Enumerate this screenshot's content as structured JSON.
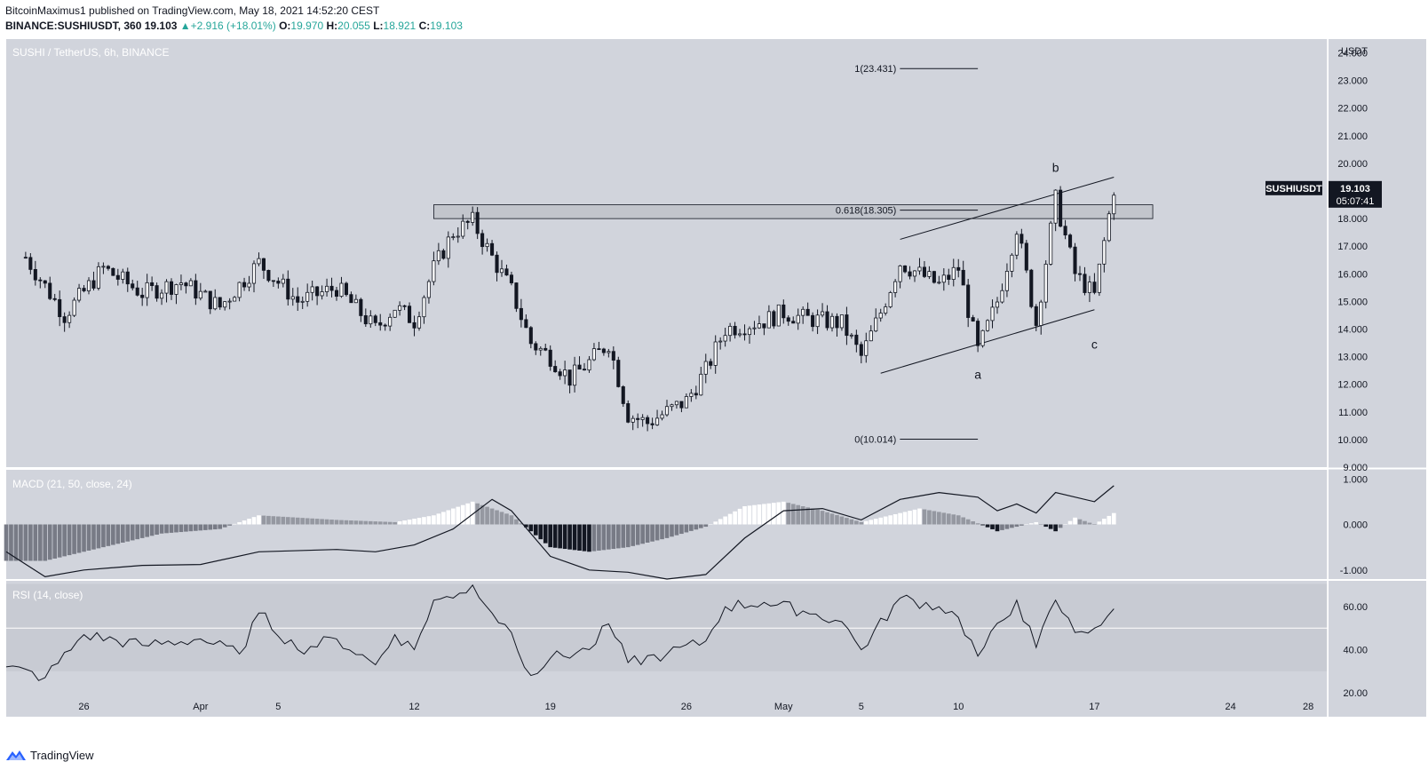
{
  "header": {
    "line1": "BitcoinMaximus1 published on TradingView.com, May 18, 2021 14:52:20 CEST",
    "symbol": "BINANCE:SUSHIUSDT, 360",
    "price": "19.103",
    "arrow": "▲",
    "change": "+2.916 (+18.01%)",
    "o_label": "O:",
    "o_value": "19.970",
    "h_label": "H:",
    "h_value": "20.055",
    "l_label": "L:",
    "l_value": "18.921",
    "c_label": "C:",
    "c_value": "19.103"
  },
  "footer": {
    "brand": "TradingView"
  },
  "colors": {
    "pane_bg": "#d1d4dc",
    "candle": "#131722",
    "accent": "#26a69a",
    "label_bg": "#131722"
  },
  "chart_data": [
    {
      "type": "candlestick",
      "title": "SUSHI / TetherUS, 6h, BINANCE",
      "unit": "USDT",
      "x_tick_labels": [
        "26",
        "Apr",
        "5",
        "12",
        "19",
        "26",
        "May",
        "5",
        "10",
        "17",
        "24",
        "28"
      ],
      "y_tick_labels": [
        "9.000",
        "10.000",
        "11.000",
        "12.000",
        "13.000",
        "14.000",
        "15.000",
        "16.000",
        "17.000",
        "18.000",
        "19.000",
        "20.000",
        "21.000",
        "22.000",
        "23.000",
        "24.000"
      ],
      "ylim": [
        9,
        24.5
      ],
      "last_price_label": {
        "symbol": "SUSHIUSDT",
        "price": "19.103",
        "countdown": "05:07:41"
      },
      "price_path": [
        [
          "Mar 23",
          16.6
        ],
        [
          "Mar 25",
          14.5
        ],
        [
          "Mar 27",
          16.2
        ],
        [
          "Mar 29",
          15.3
        ],
        [
          "Mar 31",
          15.7
        ],
        [
          "Apr 2",
          14.8
        ],
        [
          "Apr 4",
          16.4
        ],
        [
          "Apr 6",
          15.0
        ],
        [
          "Apr 8",
          15.5
        ],
        [
          "Apr 10",
          14.0
        ],
        [
          "Apr 11",
          14.8
        ],
        [
          "Apr 12",
          14.3
        ],
        [
          "Apr 13",
          16.2
        ],
        [
          "Apr 14",
          17.5
        ],
        [
          "Apr 15",
          17.9
        ],
        [
          "Apr 16",
          16.6
        ],
        [
          "Apr 17",
          15.4
        ],
        [
          "Apr 18",
          13.5
        ],
        [
          "Apr 19",
          13.0
        ],
        [
          "Apr 20",
          12.2
        ],
        [
          "Apr 21",
          12.8
        ],
        [
          "Apr 22",
          13.5
        ],
        [
          "Apr 23",
          10.9
        ],
        [
          "Apr 24",
          10.6
        ],
        [
          "Apr 25",
          11.0
        ],
        [
          "Apr 26",
          11.4
        ],
        [
          "Apr 27",
          12.5
        ],
        [
          "Apr 28",
          14.0
        ],
        [
          "Apr 30",
          14.3
        ],
        [
          "May 1",
          14.6
        ],
        [
          "May 2",
          14.4
        ],
        [
          "May 4",
          14.2
        ],
        [
          "May 5",
          13.0
        ],
        [
          "May 6",
          14.6
        ],
        [
          "May 7",
          16.4
        ],
        [
          "May 8",
          16.0
        ],
        [
          "May 9",
          15.6
        ],
        [
          "May 10",
          16.2
        ],
        [
          "May 11",
          13.2
        ],
        [
          "May 12",
          15.0
        ],
        [
          "May 13",
          17.7
        ],
        [
          "May 14",
          14.2
        ],
        [
          "May 15",
          18.7
        ],
        [
          "May 16",
          16.0
        ],
        [
          "May 17",
          15.2
        ],
        [
          "May 18",
          19.1
        ]
      ],
      "horizontal_zone": {
        "from": 18.0,
        "to": 18.5
      },
      "fib_levels": [
        {
          "label": "1(23.431)",
          "value": 23.431
        },
        {
          "label": "0.618(18.305)",
          "value": 18.305
        },
        {
          "label": "0(10.014)",
          "value": 10.014
        }
      ],
      "channel": {
        "upper": [
          [
            "May 7",
            17.25
          ],
          [
            "May 18",
            19.5
          ]
        ],
        "lower": [
          [
            "May 6",
            12.4
          ],
          [
            "May 17",
            14.7
          ]
        ]
      },
      "wave_labels": [
        {
          "text": "a",
          "date": "May 11",
          "value": 12.2
        },
        {
          "text": "b",
          "date": "May 15",
          "value": 19.7
        },
        {
          "text": "c",
          "date": "May 17",
          "value": 13.3
        }
      ]
    },
    {
      "type": "line",
      "title": "MACD (21, 50, close, 24)",
      "y_tick_labels": [
        "-1.000",
        "0.000",
        "1.000"
      ],
      "ylim": [
        -1.2,
        1.2
      ],
      "macd_line": [
        [
          "Mar 22",
          -0.6
        ],
        [
          "Mar 24",
          -1.15
        ],
        [
          "Mar 26",
          -1.0
        ],
        [
          "Mar 29",
          -0.9
        ],
        [
          "Apr 1",
          -0.88
        ],
        [
          "Apr 4",
          -0.6
        ],
        [
          "Apr 8",
          -0.55
        ],
        [
          "Apr 10",
          -0.6
        ],
        [
          "Apr 12",
          -0.45
        ],
        [
          "Apr 14",
          -0.1
        ],
        [
          "Apr 16",
          0.55
        ],
        [
          "Apr 17",
          0.3
        ],
        [
          "Apr 19",
          -0.7
        ],
        [
          "Apr 21",
          -1.0
        ],
        [
          "Apr 23",
          -1.05
        ],
        [
          "Apr 25",
          -1.2
        ],
        [
          "Apr 27",
          -1.1
        ],
        [
          "Apr 29",
          -0.3
        ],
        [
          "May 1",
          0.3
        ],
        [
          "May 3",
          0.35
        ],
        [
          "May 5",
          0.1
        ],
        [
          "May 7",
          0.55
        ],
        [
          "May 9",
          0.7
        ],
        [
          "May 11",
          0.6
        ],
        [
          "May 12",
          0.3
        ],
        [
          "May 13",
          0.45
        ],
        [
          "May 14",
          0.25
        ],
        [
          "May 15",
          0.7
        ],
        [
          "May 17",
          0.5
        ],
        [
          "May 18",
          0.85
        ]
      ],
      "histogram": [
        [
          "Mar 22",
          -0.8
        ],
        [
          "Mar 24",
          -0.8
        ],
        [
          "Mar 27",
          -0.5
        ],
        [
          "Mar 30",
          -0.2
        ],
        [
          "Apr 2",
          -0.1
        ],
        [
          "Apr 4",
          0.2
        ],
        [
          "Apr 8",
          0.1
        ],
        [
          "Apr 11",
          0.05
        ],
        [
          "Apr 13",
          0.2
        ],
        [
          "Apr 15",
          0.5
        ],
        [
          "Apr 17",
          0.2
        ],
        [
          "Apr 19",
          -0.5
        ],
        [
          "Apr 21",
          -0.6
        ],
        [
          "Apr 23",
          -0.5
        ],
        [
          "Apr 25",
          -0.3
        ],
        [
          "Apr 27",
          -0.05
        ],
        [
          "Apr 29",
          0.4
        ],
        [
          "May 1",
          0.5
        ],
        [
          "May 3",
          0.3
        ],
        [
          "May 5",
          0.05
        ],
        [
          "May 8",
          0.35
        ],
        [
          "May 10",
          0.2
        ],
        [
          "May 12",
          -0.15
        ],
        [
          "May 14",
          0.05
        ],
        [
          "May 15",
          -0.15
        ],
        [
          "May 16",
          0.15
        ],
        [
          "May 17",
          0.0
        ],
        [
          "May 18",
          0.25
        ]
      ]
    },
    {
      "type": "line",
      "title": "RSI (14, close)",
      "y_tick_labels": [
        "20.00",
        "40.00",
        "60.00"
      ],
      "ylim": [
        20,
        72
      ],
      "rsi_line": [
        [
          "Mar 22",
          32
        ],
        [
          "Mar 24",
          27
        ],
        [
          "Mar 26",
          47
        ],
        [
          "Mar 29",
          42
        ],
        [
          "Apr 1",
          45
        ],
        [
          "Apr 3",
          38
        ],
        [
          "Apr 4",
          57
        ],
        [
          "Apr 6",
          40
        ],
        [
          "Apr 8",
          45
        ],
        [
          "Apr 10",
          33
        ],
        [
          "Apr 11",
          47
        ],
        [
          "Apr 12",
          40
        ],
        [
          "Apr 13",
          63
        ],
        [
          "Apr 14",
          64
        ],
        [
          "Apr 15",
          70
        ],
        [
          "Apr 16",
          57
        ],
        [
          "Apr 17",
          48
        ],
        [
          "Apr 18",
          28
        ],
        [
          "Apr 19",
          36
        ],
        [
          "Apr 21",
          40
        ],
        [
          "Apr 22",
          52
        ],
        [
          "Apr 23",
          34
        ],
        [
          "Apr 25",
          38
        ],
        [
          "Apr 27",
          44
        ],
        [
          "Apr 28",
          60
        ],
        [
          "Apr 30",
          62
        ],
        [
          "May 2",
          58
        ],
        [
          "May 4",
          53
        ],
        [
          "May 5",
          40
        ],
        [
          "May 7",
          64
        ],
        [
          "May 9",
          60
        ],
        [
          "May 10",
          55
        ],
        [
          "May 11",
          37
        ],
        [
          "May 13",
          63
        ],
        [
          "May 14",
          41
        ],
        [
          "May 15",
          63
        ],
        [
          "May 16",
          48
        ],
        [
          "May 17",
          50
        ],
        [
          "May 18",
          59
        ]
      ]
    }
  ]
}
